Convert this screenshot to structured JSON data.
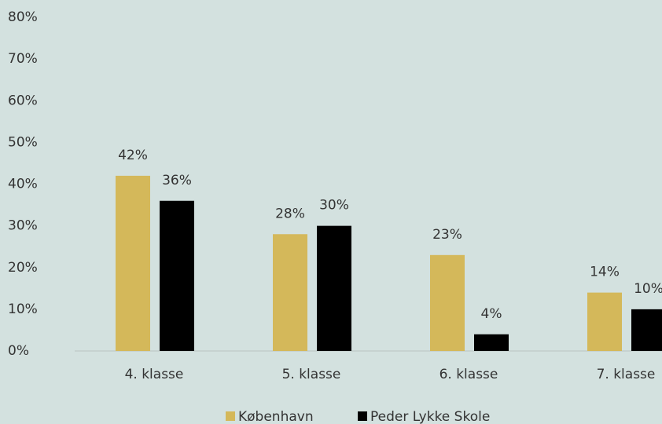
{
  "chart_data": {
    "type": "bar",
    "categories": [
      "4. klasse",
      "5. klasse",
      "6. klasse",
      "7. klasse"
    ],
    "series": [
      {
        "name": "København",
        "color": "#d4b85a",
        "values": [
          42,
          28,
          23,
          14
        ],
        "value_labels": [
          "42%",
          "28%",
          "23%",
          "14%"
        ]
      },
      {
        "name": "Peder Lykke Skole",
        "color": "#000000",
        "values": [
          36,
          30,
          4,
          10
        ],
        "value_labels": [
          "36%",
          "30%",
          "4%",
          "10%"
        ]
      }
    ],
    "ylim": [
      0,
      80
    ],
    "yticks": [
      {
        "value": 0,
        "label": "0%"
      },
      {
        "value": 10,
        "label": "10%"
      },
      {
        "value": 20,
        "label": "20%"
      },
      {
        "value": 30,
        "label": "30%"
      },
      {
        "value": 40,
        "label": "40%"
      },
      {
        "value": 50,
        "label": "50%"
      },
      {
        "value": 60,
        "label": "60%"
      },
      {
        "value": 70,
        "label": "70%"
      },
      {
        "value": 80,
        "label": "80%"
      }
    ],
    "grid": false,
    "legend": "bottom"
  }
}
